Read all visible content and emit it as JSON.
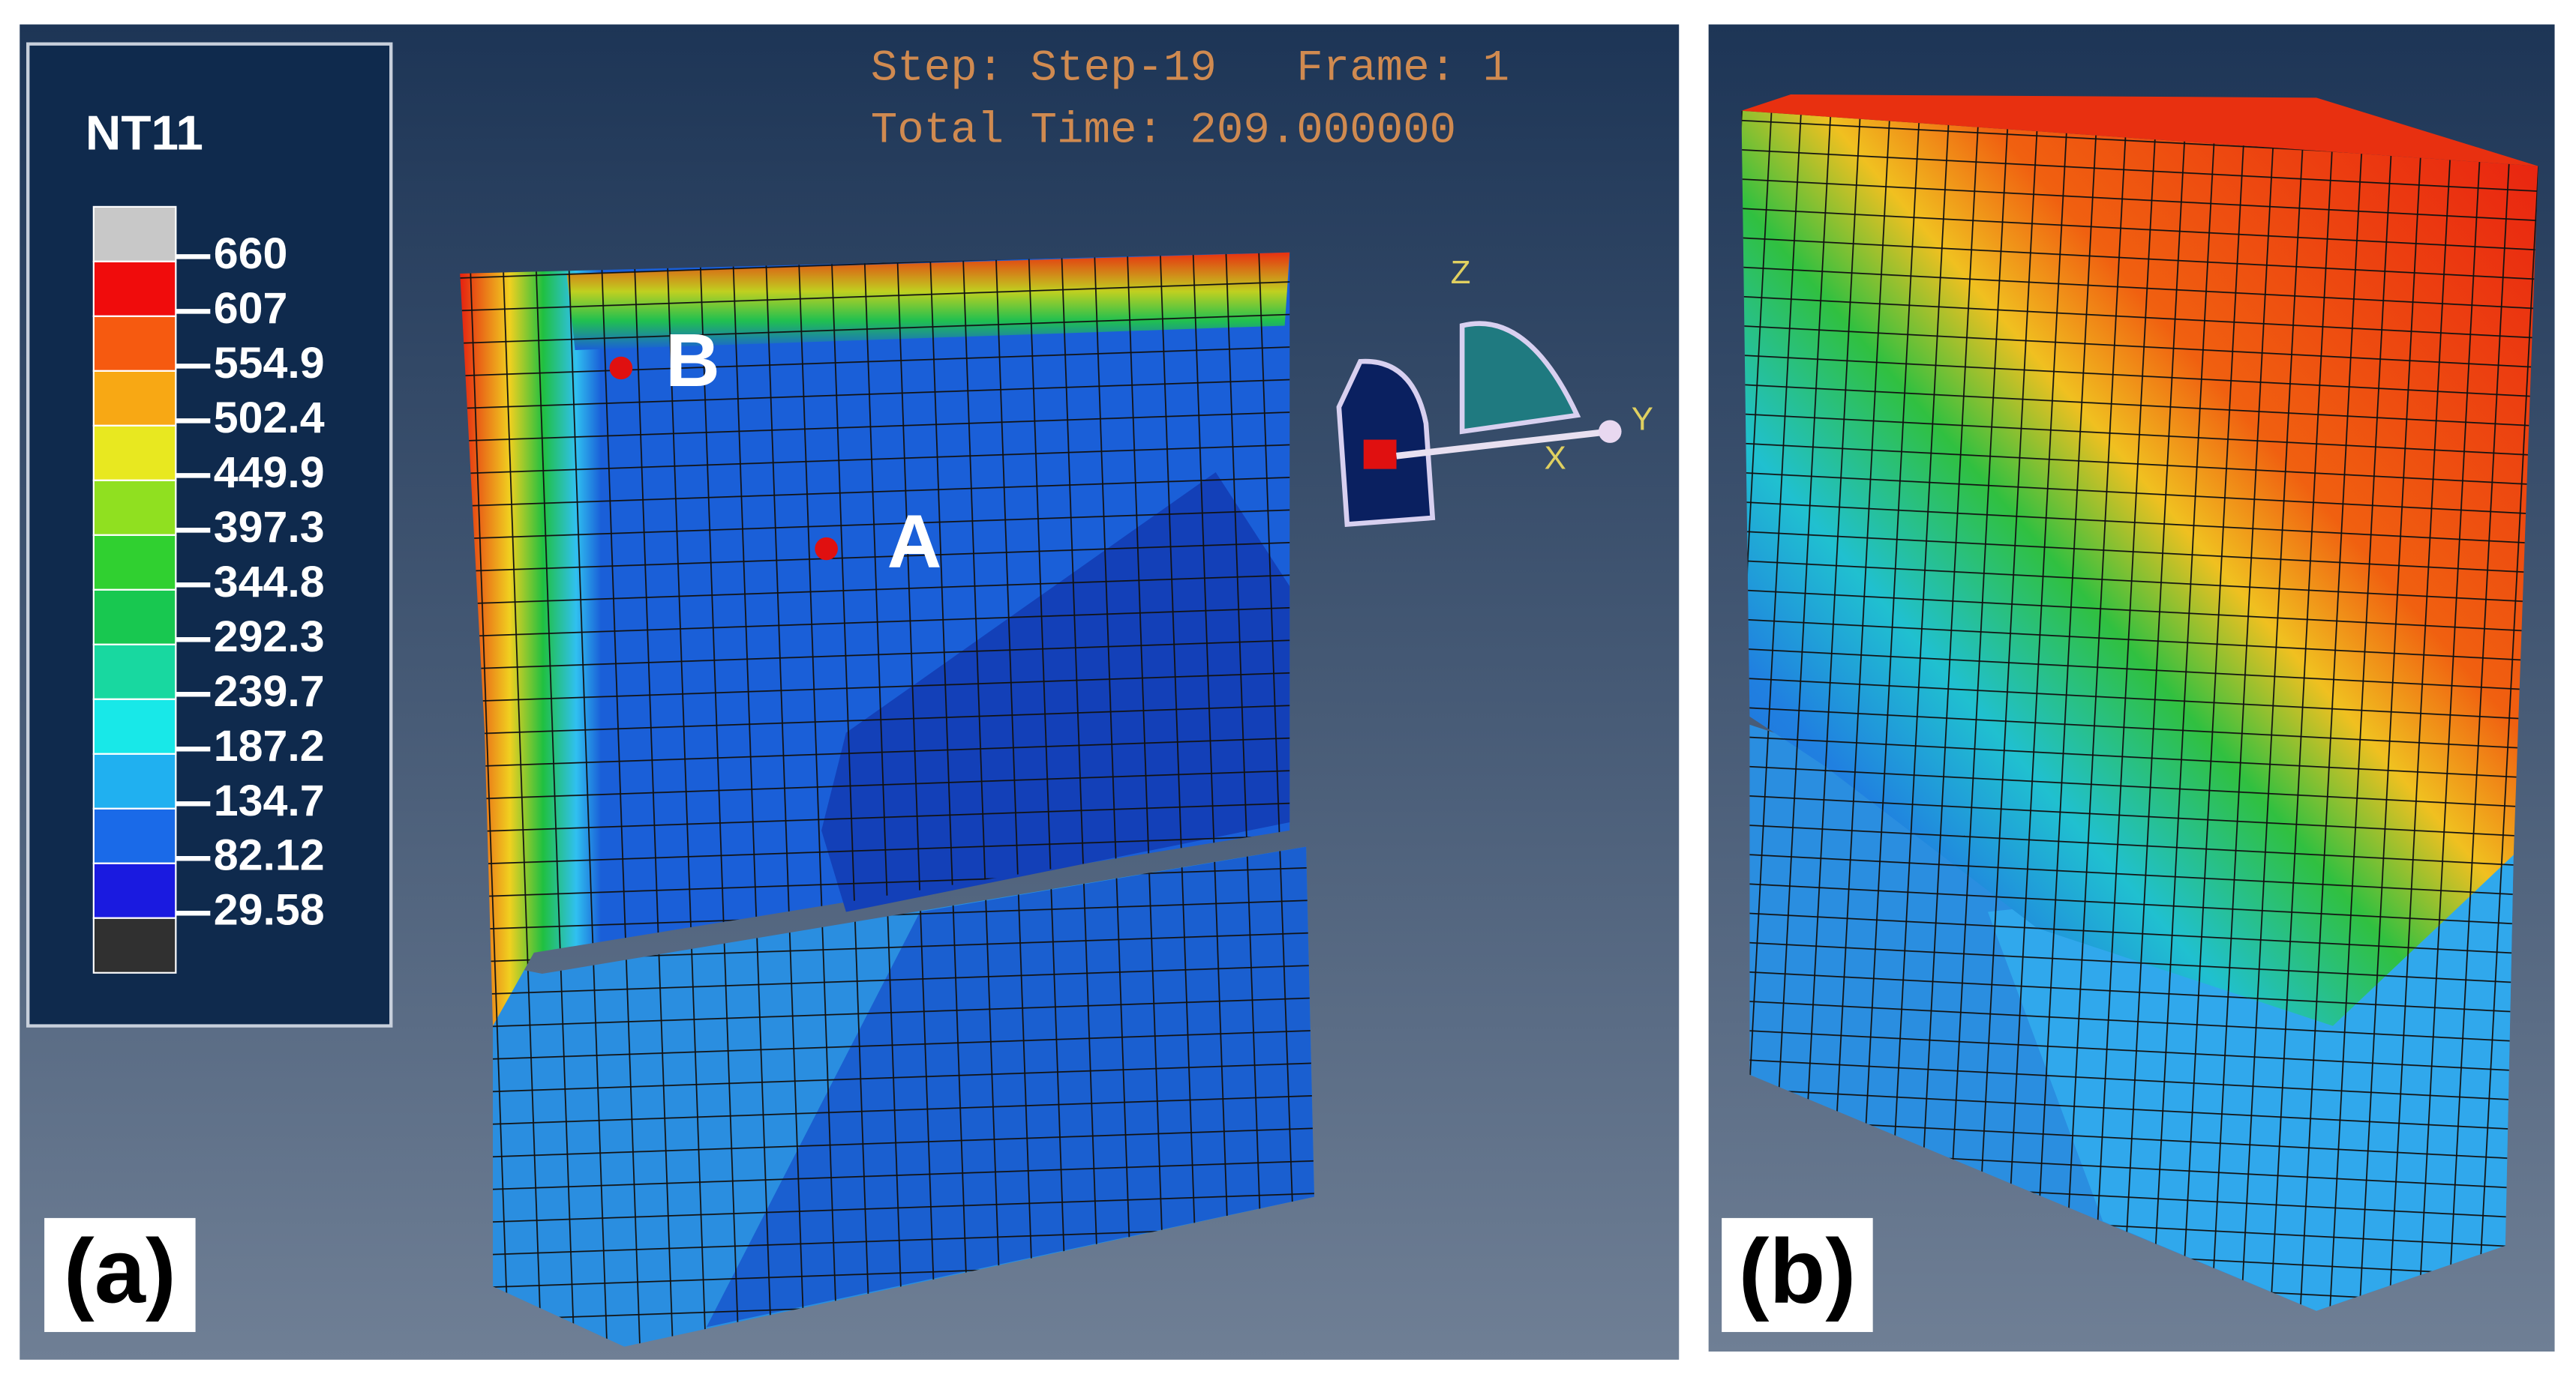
{
  "legend": {
    "title": "NT11",
    "labels": [
      "660",
      "607",
      "554.9",
      "502.4",
      "449.9",
      "397.3",
      "344.8",
      "292.3",
      "239.7",
      "187.2",
      "134.7",
      "82.12",
      "29.58"
    ]
  },
  "header": {
    "step": "Step: Step-19   Frame: 1",
    "time": "Total Time: 209.000000"
  },
  "triad": {
    "z": "Z",
    "y": "Y",
    "x": "X"
  },
  "points": {
    "b": "B",
    "a": "A"
  },
  "panels": {
    "a": "(a)",
    "b": "(b)"
  }
}
